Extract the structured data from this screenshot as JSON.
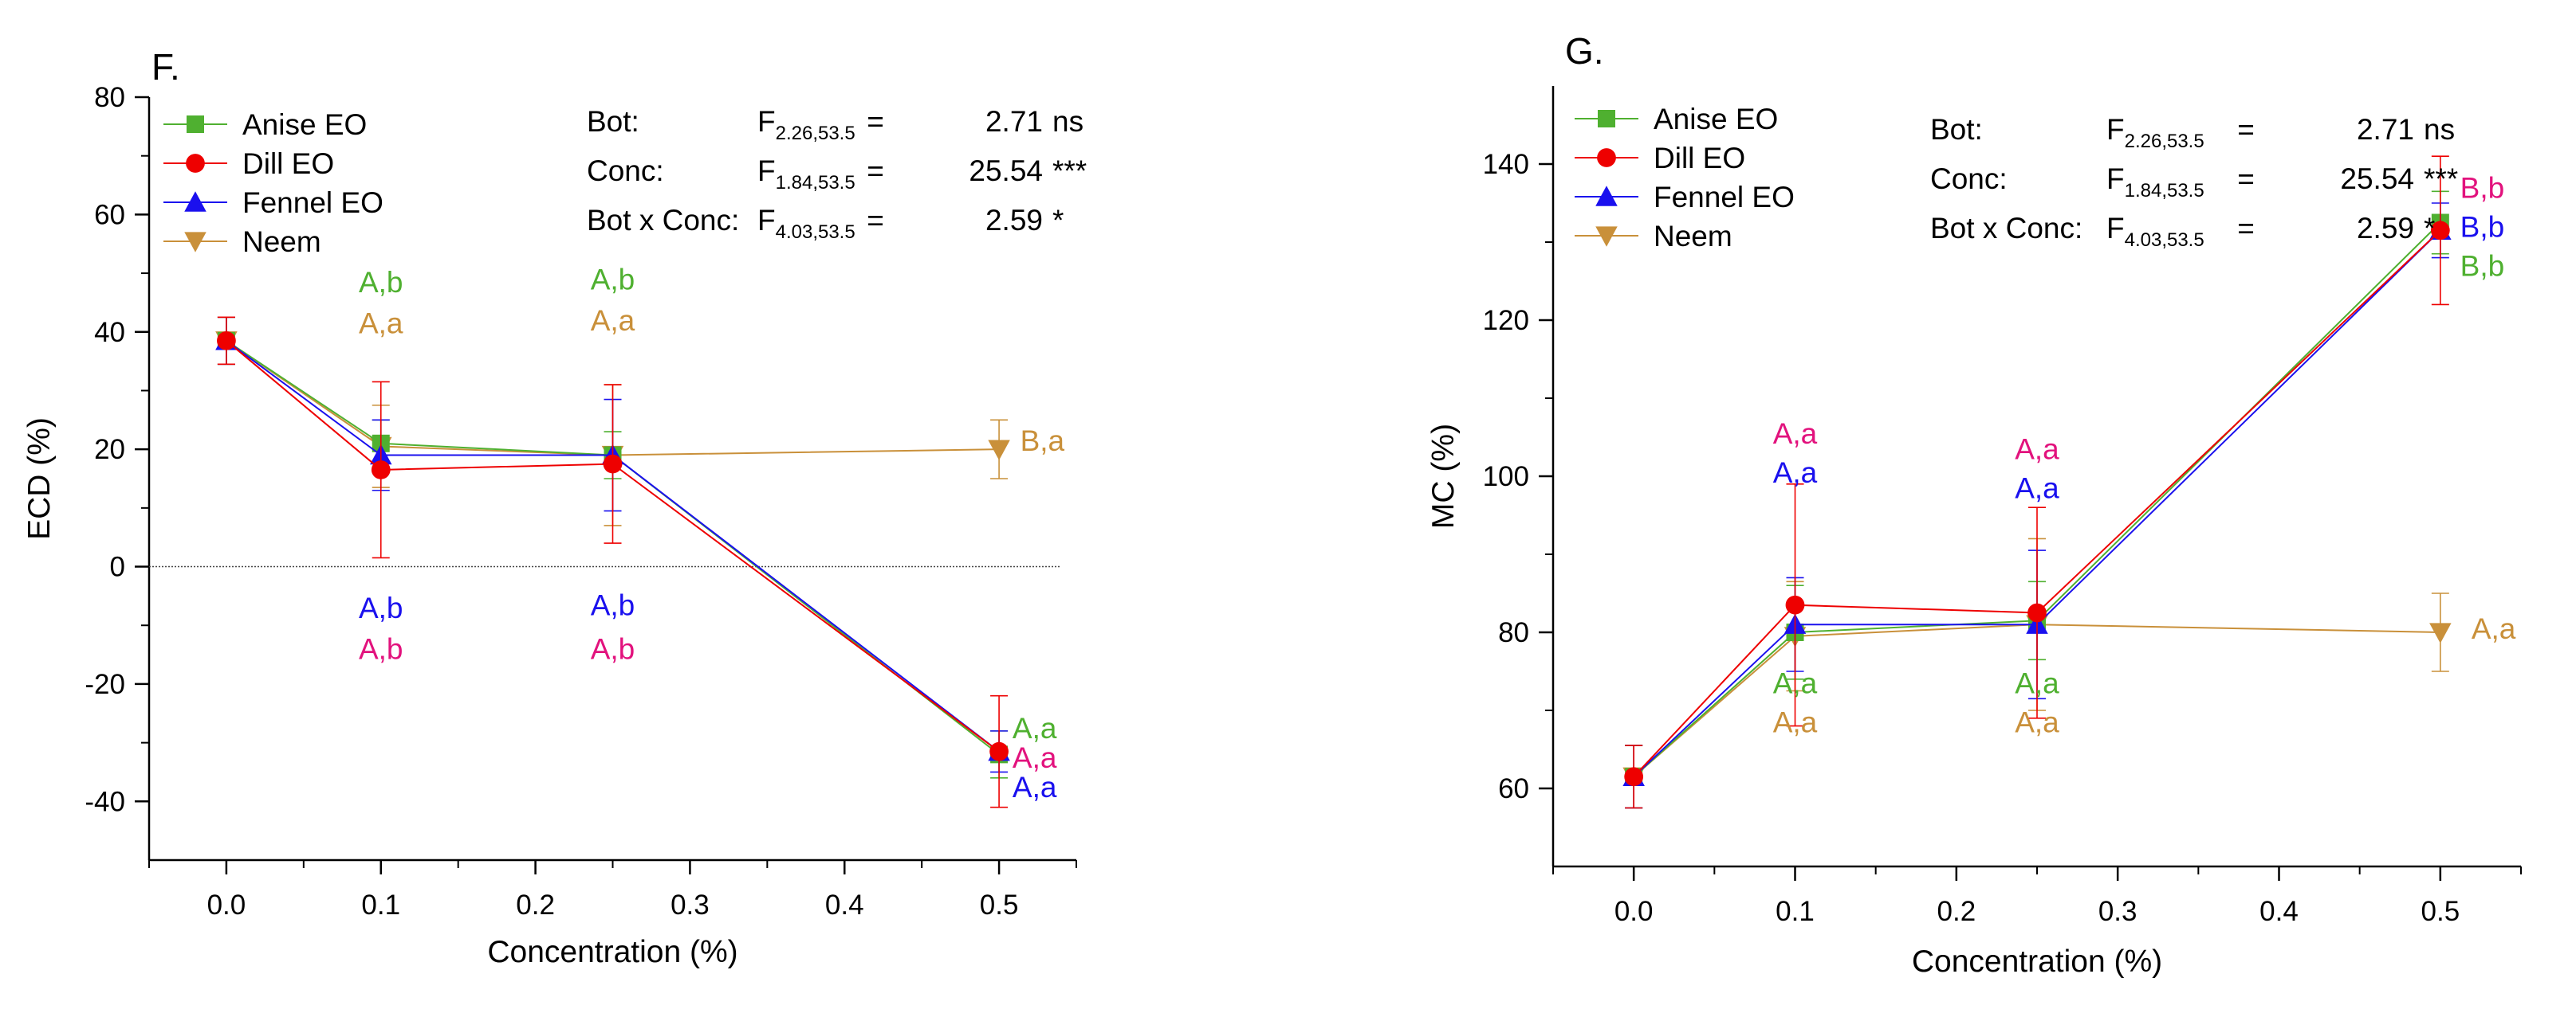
{
  "colors": {
    "anise": "#4fb030",
    "dill": "#ee0000",
    "fennel": "#1a10ee",
    "neem": "#c9903a",
    "label_pink": "#e2127d",
    "label_green": "#4fb030",
    "label_blue": "#1a10ee",
    "label_tan": "#c9903a"
  },
  "chart_data": [
    {
      "type": "line",
      "panel_label": "F.",
      "xlabel": "Concentration (%)",
      "ylabel": "ECD (%)",
      "xlim": [
        -0.05,
        0.55
      ],
      "ylim": [
        -50,
        80
      ],
      "x_ticks": [
        "0.0",
        "0.1",
        "0.2",
        "0.3",
        "0.4",
        "0.5"
      ],
      "y_ticks": [
        "-40",
        "-20",
        "0",
        "20",
        "40",
        "60",
        "80"
      ],
      "reference_line_y": 0,
      "legend_position": "top-left",
      "series": [
        {
          "name": "Anise EO",
          "key": "anise",
          "marker": "square",
          "x": [
            0,
            0.1,
            0.25,
            0.5
          ],
          "y": [
            38.5,
            21,
            19,
            -32
          ],
          "err": [
            4,
            4,
            4,
            4
          ]
        },
        {
          "name": "Dill EO",
          "key": "dill",
          "marker": "circle",
          "x": [
            0,
            0.1,
            0.25,
            0.5
          ],
          "y": [
            38.5,
            16.5,
            17.5,
            -31.5
          ],
          "err": [
            4,
            15,
            13.5,
            9.5
          ]
        },
        {
          "name": "Fennel EO",
          "key": "fennel",
          "marker": "triangle-up",
          "x": [
            0,
            0.1,
            0.25,
            0.5
          ],
          "y": [
            38.5,
            19,
            19,
            -31.5
          ],
          "err": [
            4,
            6,
            9.5,
            3.5
          ]
        },
        {
          "name": "Neem",
          "key": "neem",
          "marker": "triangle-down",
          "x": [
            0,
            0.1,
            0.25,
            0.5
          ],
          "y": [
            38.5,
            20.5,
            19,
            20
          ],
          "err": [
            4,
            7,
            12,
            5
          ]
        }
      ],
      "stats": [
        {
          "label": "Bot:",
          "f": "F",
          "sub": "2.26,53.5",
          "eq": "=",
          "value": "2.71 ns"
        },
        {
          "label": "Conc:",
          "f": "F",
          "sub": "1.84,53.5",
          "eq": "=",
          "value": "25.54 ***"
        },
        {
          "label": "Bot x Conc:",
          "f": "F",
          "sub": "4.03,53.5",
          "eq": "=",
          "value": "2.59 *"
        }
      ],
      "annotations": [
        {
          "text": "A,b",
          "x": 0.1,
          "y": 48.5,
          "color": "label_green"
        },
        {
          "text": "A,a",
          "x": 0.1,
          "y": 41.5,
          "color": "label_tan"
        },
        {
          "text": "A,b",
          "x": 0.25,
          "y": 49,
          "color": "label_green"
        },
        {
          "text": "A,a",
          "x": 0.25,
          "y": 42,
          "color": "label_tan"
        },
        {
          "text": "B,a",
          "x": 0.528,
          "y": 21.5,
          "color": "label_tan"
        },
        {
          "text": "A,b",
          "x": 0.1,
          "y": -7,
          "color": "label_blue"
        },
        {
          "text": "A,b",
          "x": 0.1,
          "y": -14,
          "color": "label_pink"
        },
        {
          "text": "A,b",
          "x": 0.25,
          "y": -6.5,
          "color": "label_blue"
        },
        {
          "text": "A,b",
          "x": 0.25,
          "y": -14,
          "color": "label_pink"
        },
        {
          "text": "A,a",
          "x": 0.523,
          "y": -27.5,
          "color": "label_green"
        },
        {
          "text": "A,a",
          "x": 0.523,
          "y": -32.5,
          "color": "label_pink"
        },
        {
          "text": "A,a",
          "x": 0.523,
          "y": -37.5,
          "color": "label_blue"
        }
      ]
    },
    {
      "type": "line",
      "panel_label": "G.",
      "xlabel": "Concentration (%)",
      "ylabel": "MC (%)",
      "xlim": [
        -0.05,
        0.55
      ],
      "ylim": [
        50,
        150
      ],
      "x_ticks": [
        "0.0",
        "0.1",
        "0.2",
        "0.3",
        "0.4",
        "0.5"
      ],
      "y_ticks": [
        "60",
        "80",
        "100",
        "120",
        "140"
      ],
      "legend_position": "top-left",
      "series": [
        {
          "name": "Anise EO",
          "key": "anise",
          "marker": "square",
          "x": [
            0,
            0.1,
            0.25,
            0.5
          ],
          "y": [
            61.5,
            80,
            81.5,
            132.5
          ],
          "err": [
            4,
            6,
            5,
            4
          ]
        },
        {
          "name": "Dill EO",
          "key": "dill",
          "marker": "circle",
          "x": [
            0,
            0.1,
            0.25,
            0.5
          ],
          "y": [
            61.5,
            83.5,
            82.5,
            131.5
          ],
          "err": [
            4,
            15.5,
            13.5,
            9.5
          ]
        },
        {
          "name": "Fennel EO",
          "key": "fennel",
          "marker": "triangle-up",
          "x": [
            0,
            0.1,
            0.25,
            0.5
          ],
          "y": [
            61.5,
            81,
            81,
            131.5
          ],
          "err": [
            4,
            6,
            9.5,
            3.5
          ]
        },
        {
          "name": "Neem",
          "key": "neem",
          "marker": "triangle-down",
          "x": [
            0,
            0.1,
            0.25,
            0.5
          ],
          "y": [
            61.5,
            79.5,
            81,
            80
          ],
          "err": [
            4,
            7,
            11,
            5
          ]
        }
      ],
      "stats": [
        {
          "label": "Bot:",
          "f": "F",
          "sub": "2.26,53.5",
          "eq": "=",
          "value": "2.71 ns"
        },
        {
          "label": "Conc:",
          "f": "F",
          "sub": "1.84,53.5",
          "eq": "=",
          "value": "25.54 ***"
        },
        {
          "label": "Bot x Conc:",
          "f": "F",
          "sub": "4.03,53.5",
          "eq": "=",
          "value": "2.59 *"
        }
      ],
      "annotations": [
        {
          "text": "A,a",
          "x": 0.1,
          "y": 105.5,
          "color": "label_pink"
        },
        {
          "text": "A,a",
          "x": 0.1,
          "y": 100.5,
          "color": "label_blue"
        },
        {
          "text": "A,a",
          "x": 0.25,
          "y": 103.5,
          "color": "label_pink"
        },
        {
          "text": "A,a",
          "x": 0.25,
          "y": 98.5,
          "color": "label_blue"
        },
        {
          "text": "A,a",
          "x": 0.1,
          "y": 73.5,
          "color": "label_green"
        },
        {
          "text": "A,a",
          "x": 0.1,
          "y": 68.5,
          "color": "label_tan"
        },
        {
          "text": "A,a",
          "x": 0.25,
          "y": 73.5,
          "color": "label_green"
        },
        {
          "text": "A,a",
          "x": 0.25,
          "y": 68.5,
          "color": "label_tan"
        },
        {
          "text": "A,a",
          "x": 0.533,
          "y": 80.5,
          "color": "label_tan"
        },
        {
          "text": "B,b",
          "x": 0.526,
          "y": 137,
          "color": "label_pink"
        },
        {
          "text": "B,b",
          "x": 0.526,
          "y": 132,
          "color": "label_blue"
        },
        {
          "text": "B,b",
          "x": 0.526,
          "y": 127,
          "color": "label_green"
        }
      ]
    }
  ]
}
